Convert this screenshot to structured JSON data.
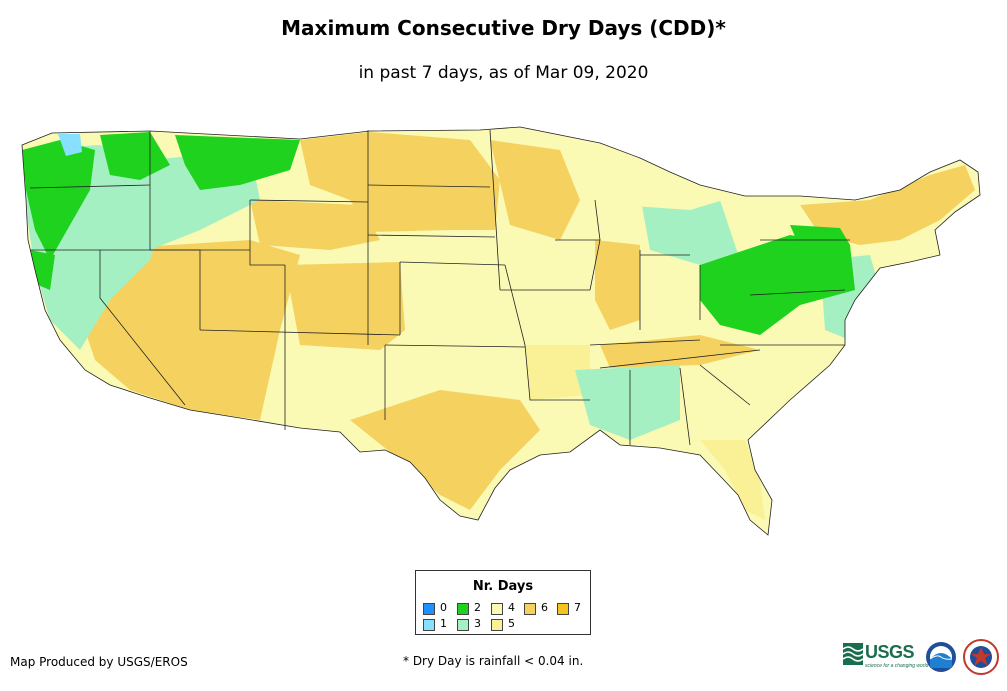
{
  "header": {
    "title": "Maximum Consecutive Dry Days (CDD)*",
    "subtitle": "in past 7 days, as of Mar 09, 2020"
  },
  "legend": {
    "title": "Nr. Days",
    "items": [
      {
        "label": "0",
        "color": "#1e90ff"
      },
      {
        "label": "1",
        "color": "#87e0ff"
      },
      {
        "label": "2",
        "color": "#1ed21e"
      },
      {
        "label": "3",
        "color": "#a5f0c3"
      },
      {
        "label": "4",
        "color": "#fafab4"
      },
      {
        "label": "5",
        "color": "#faf096"
      },
      {
        "label": "6",
        "color": "#f5d25f"
      },
      {
        "label": "7",
        "color": "#f5c31e"
      }
    ]
  },
  "map": {
    "region": "Contiguous United States",
    "value_class_by_area": [
      {
        "area": "Pacific Northwest coast",
        "days": 2
      },
      {
        "area": "Northern Rockies",
        "days": 2
      },
      {
        "area": "Ohio Valley / Appalachians",
        "days": 2
      },
      {
        "area": "Upper Great Lakes",
        "days": 3
      },
      {
        "area": "Lower Mississippi Valley",
        "days": 3
      },
      {
        "area": "Great Plains",
        "days": 4
      },
      {
        "area": "Southwest",
        "days": 6
      },
      {
        "area": "Northern Plains",
        "days": 6
      },
      {
        "area": "Florida",
        "days": 5
      }
    ]
  },
  "footer": {
    "credit": "Map Produced by USGS/EROS",
    "footnote": "* Dry Day is rainfall < 0.04 in.",
    "usgs_logo_text": "USGS",
    "usgs_tagline": "science for a changing world"
  }
}
